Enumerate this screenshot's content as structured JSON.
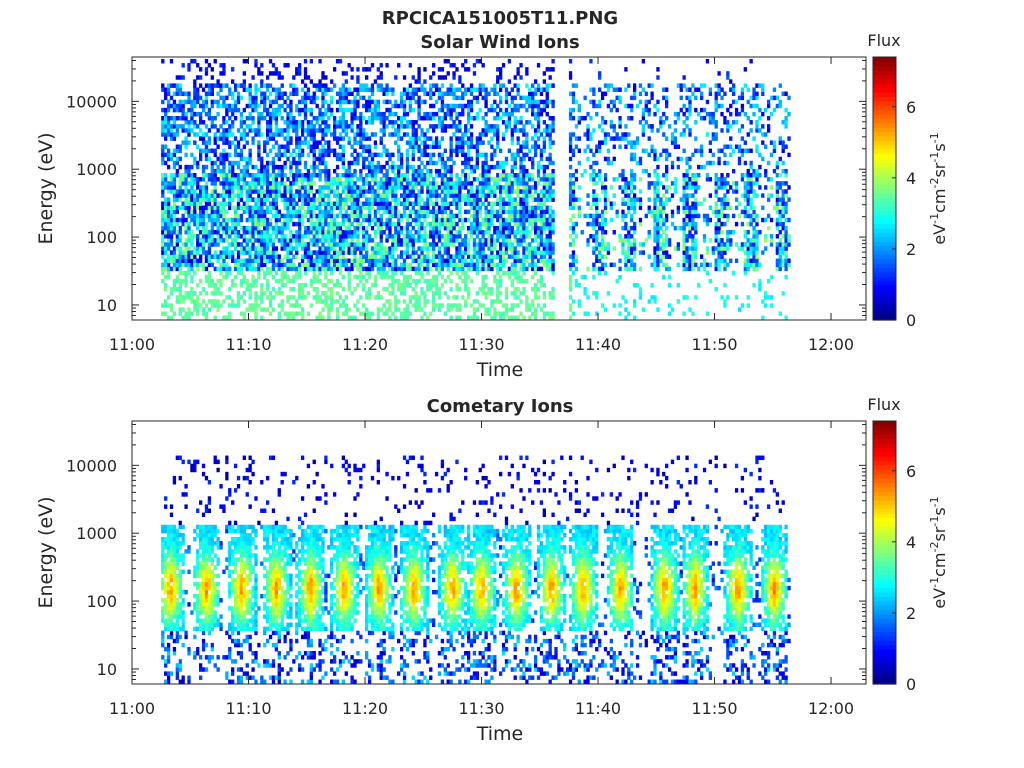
{
  "figure_title": "RPCICA151005T11.PNG",
  "chart_data": [
    {
      "type": "heatmap",
      "title": "Solar Wind Ions",
      "xlabel": "Time",
      "ylabel": "Energy (eV)",
      "x_ticks": [
        "11:00",
        "11:10",
        "11:20",
        "11:30",
        "11:40",
        "11:50",
        "12:00"
      ],
      "x_range_minutes": [
        0,
        63
      ],
      "y_scale": "log",
      "y_ticks": [
        "10",
        "100",
        "1000",
        "10000"
      ],
      "y_range_eV": [
        6,
        45000
      ],
      "data_time_span_minutes": [
        2.5,
        56.5
      ],
      "data_gap_minutes": [
        36,
        37.5
      ],
      "grid": false,
      "colorbar": {
        "label": "Flux",
        "unit_base": "eV",
        "unit_parts": [
          "eV",
          "-1",
          "cm",
          "-2",
          "sr",
          "-1",
          "s",
          "-1"
        ],
        "ticks": [
          "0",
          "2",
          "4",
          "6"
        ],
        "range": [
          0,
          7.4
        ],
        "colormap": "jet"
      },
      "peak_flux_log": 4.2,
      "dominant_energy_band_eV": [
        30,
        10000
      ]
    },
    {
      "type": "heatmap",
      "title": "Cometary Ions",
      "xlabel": "Time",
      "ylabel": "Energy (eV)",
      "x_ticks": [
        "11:00",
        "11:10",
        "11:20",
        "11:30",
        "11:40",
        "11:50",
        "12:00"
      ],
      "x_range_minutes": [
        0,
        63
      ],
      "y_scale": "log",
      "y_ticks": [
        "10",
        "100",
        "1000",
        "10000"
      ],
      "y_range_eV": [
        6,
        45000
      ],
      "data_time_span_minutes": [
        2.5,
        56.5
      ],
      "grid": false,
      "colorbar": {
        "label": "Flux",
        "unit_base": "eV",
        "unit_parts": [
          "eV",
          "-1",
          "cm",
          "-2",
          "sr",
          "-1",
          "s",
          "-1"
        ],
        "ticks": [
          "0",
          "2",
          "4",
          "6"
        ],
        "range": [
          0,
          7.4
        ],
        "colormap": "jet"
      },
      "peak_flux_log": 5.2,
      "dominant_energy_band_eV": [
        30,
        1500
      ],
      "burst_times_minutes": [
        3.2,
        6.3,
        9.3,
        12.3,
        15.2,
        18.1,
        21.1,
        24.1,
        27.4,
        29.9,
        32.9,
        35.9,
        38.6,
        41.8,
        45.6,
        48.2,
        51.9,
        55.0
      ]
    }
  ],
  "colors": {
    "axis": "#262626",
    "background": "#ffffff"
  }
}
